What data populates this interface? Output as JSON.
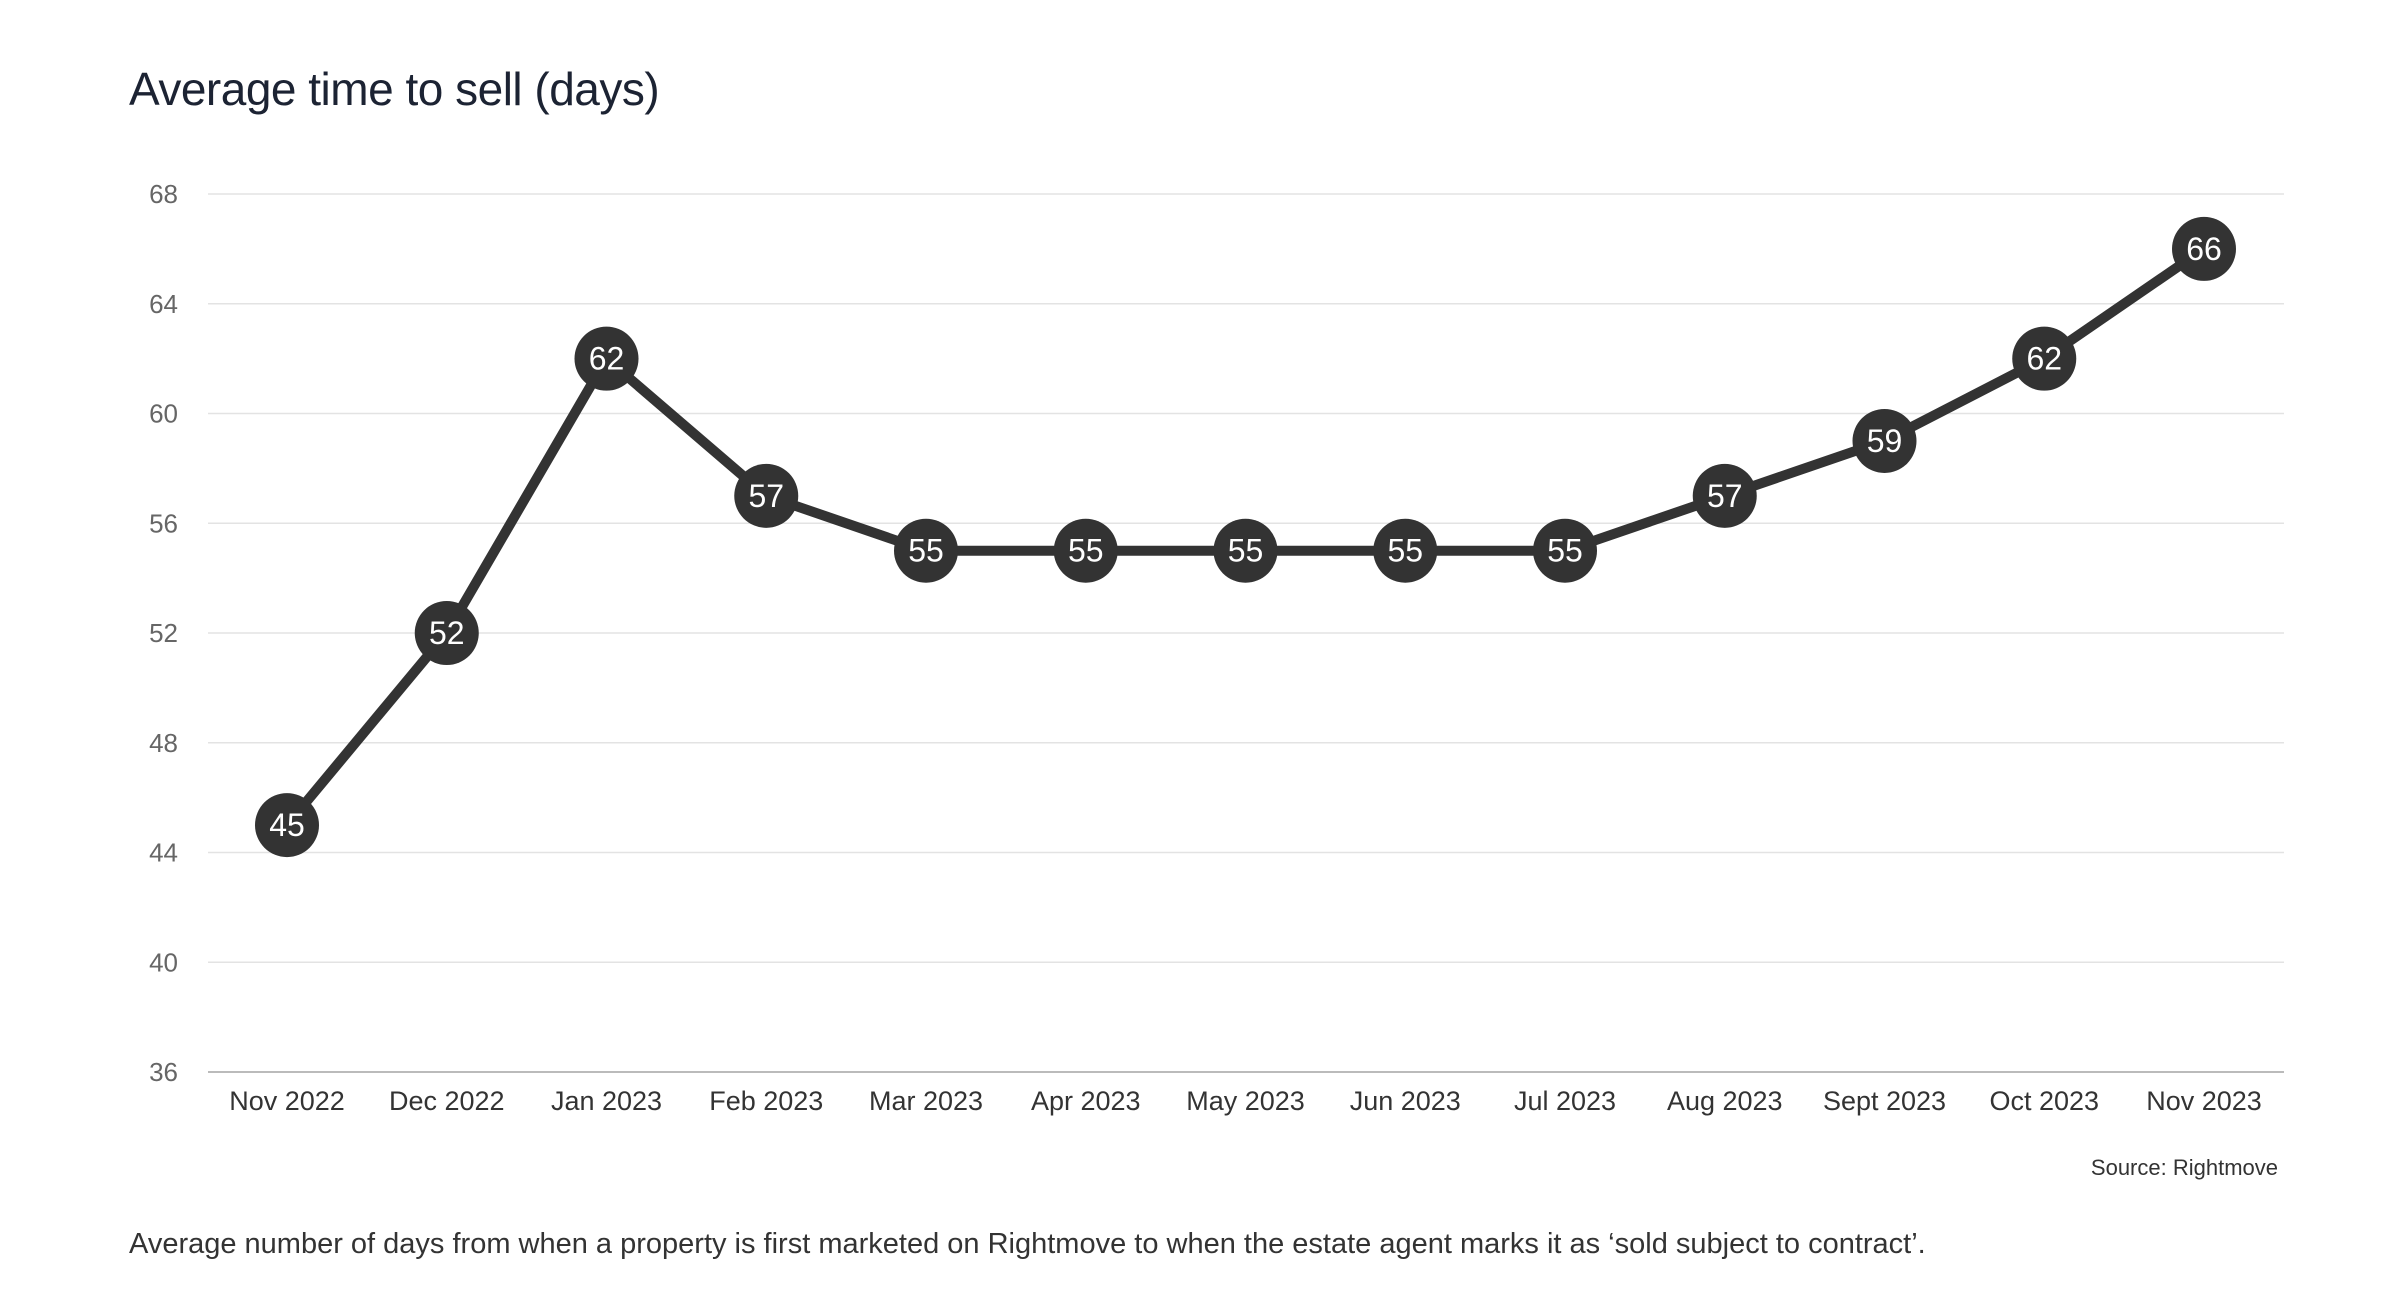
{
  "title": "Average time to sell (days)",
  "source": "Source: Rightmove",
  "caption": "Average number of days from when a property is first marketed on Rightmove to when the estate agent marks it as ‘sold subject to contract’.",
  "colors": {
    "line": "#333333",
    "marker": "#333333",
    "grid": "#e3e3e3",
    "axis": "#bbbbbb",
    "title": "#1c2333"
  },
  "chart_data": {
    "type": "line",
    "title": "Average time to sell (days)",
    "xlabel": "",
    "ylabel": "",
    "categories": [
      "Nov 2022",
      "Dec 2022",
      "Jan 2023",
      "Feb 2023",
      "Mar 2023",
      "Apr 2023",
      "May 2023",
      "Jun 2023",
      "Jul 2023",
      "Aug 2023",
      "Sept 2023",
      "Oct 2023",
      "Nov 2023"
    ],
    "series": [
      {
        "values": [
          45,
          52,
          62,
          57,
          55,
          55,
          55,
          55,
          55,
          57,
          59,
          62,
          66
        ]
      }
    ],
    "ylim": [
      36,
      68
    ],
    "yticks": [
      36,
      40,
      44,
      48,
      52,
      56,
      60,
      64,
      68
    ],
    "grid": true,
    "data_labels": true,
    "legend": "none"
  }
}
